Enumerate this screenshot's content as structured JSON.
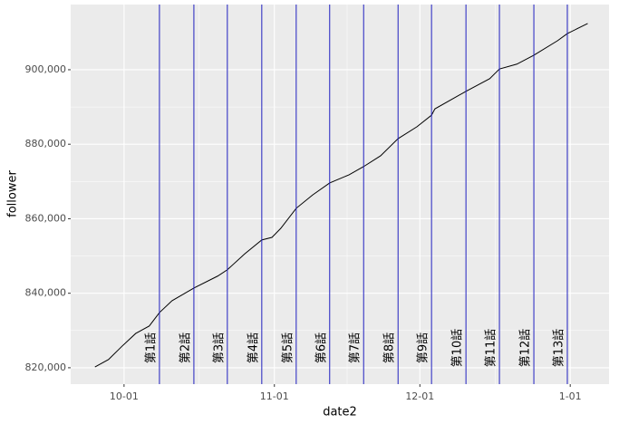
{
  "chart_data": {
    "type": "line",
    "x_label": "date2",
    "y_label": "follower",
    "x": [
      -6,
      -3.2,
      -0.4,
      2.4,
      5.2,
      7.3,
      9.9,
      14.4,
      19.3,
      21.3,
      24.9,
      28.4,
      30.5,
      32.3,
      35.5,
      38.9,
      42.4,
      46.4,
      49.4,
      52.9,
      56.5,
      60.4,
      63.4,
      64.1,
      70.5,
      75.4,
      77.4,
      81.0,
      84.5,
      89.4,
      91.4,
      95.6
    ],
    "series": [
      {
        "name": "follower",
        "color": "#000000",
        "values": [
          820200,
          822200,
          825800,
          829200,
          831200,
          834800,
          838000,
          841400,
          844600,
          846300,
          850600,
          854300,
          855000,
          857400,
          862800,
          866400,
          869600,
          871800,
          874000,
          876900,
          881500,
          884700,
          887800,
          889500,
          894200,
          897600,
          900200,
          901500,
          903900,
          907800,
          909700,
          912400
        ]
      }
    ],
    "xlim": [
      -11,
      100
    ],
    "xticks": [
      {
        "value": 0,
        "label": "10-01"
      },
      {
        "value": 31,
        "label": "11-01"
      },
      {
        "value": 61,
        "label": "12-01"
      },
      {
        "value": 92,
        "label": "1-01"
      }
    ],
    "ylim": [
      815600,
      917500
    ],
    "yticks": [
      {
        "value": 820000,
        "label": "820,000"
      },
      {
        "value": 840000,
        "label": "840,000"
      },
      {
        "value": 860000,
        "label": "860,000"
      },
      {
        "value": 880000,
        "label": "880,000"
      },
      {
        "value": 900000,
        "label": "900,000"
      }
    ],
    "grid": true,
    "vlines": {
      "color": "#2020c0",
      "lines": [
        {
          "x": 7.3,
          "label": "第1話"
        },
        {
          "x": 14.4,
          "label": "第2話"
        },
        {
          "x": 21.3,
          "label": "第3話"
        },
        {
          "x": 28.4,
          "label": "第4話"
        },
        {
          "x": 35.5,
          "label": "第5話"
        },
        {
          "x": 42.4,
          "label": "第6話"
        },
        {
          "x": 49.4,
          "label": "第7話"
        },
        {
          "x": 56.5,
          "label": "第8話"
        },
        {
          "x": 63.4,
          "label": "第9話"
        },
        {
          "x": 70.5,
          "label": "第10話"
        },
        {
          "x": 77.4,
          "label": "第11話"
        },
        {
          "x": 84.5,
          "label": "第12話"
        },
        {
          "x": 91.4,
          "label": "第13話"
        }
      ]
    }
  }
}
